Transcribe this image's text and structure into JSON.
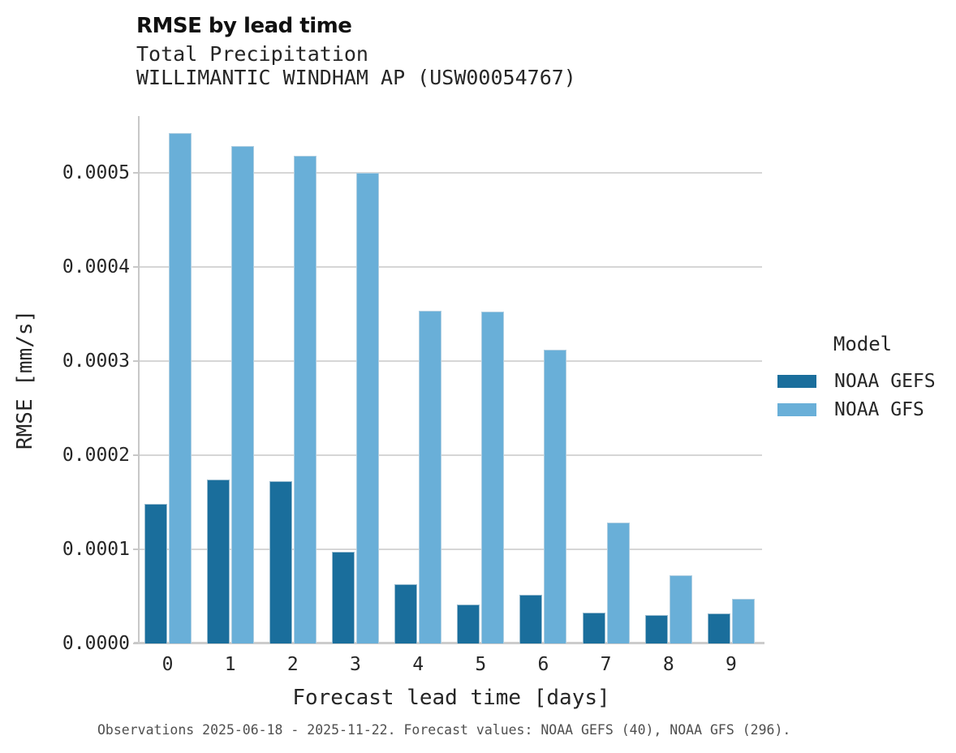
{
  "header": {
    "title": "RMSE by lead time",
    "subtitle_variable": "Total Precipitation",
    "subtitle_station": "WILLIMANTIC WINDHAM AP (USW00054767)"
  },
  "chart_data": {
    "type": "bar",
    "title": "RMSE by lead time",
    "subtitle": "Total Precipitation — WILLIMANTIC WINDHAM AP (USW00054767)",
    "categories": [
      "0",
      "1",
      "2",
      "3",
      "4",
      "5",
      "6",
      "7",
      "8",
      "9"
    ],
    "series": [
      {
        "name": "NOAA GEFS",
        "color": "#1a6e9c",
        "values": [
          0.000148,
          0.000174,
          0.000172,
          9.7e-05,
          6.3e-05,
          4.1e-05,
          5.2e-05,
          3.3e-05,
          3e-05,
          3.2e-05
        ]
      },
      {
        "name": "NOAA GFS",
        "color": "#69afd8",
        "values": [
          0.000542,
          0.000528,
          0.000518,
          0.0005,
          0.000353,
          0.000352,
          0.000312,
          0.000128,
          7.2e-05,
          4.7e-05
        ]
      }
    ],
    "xlabel": "Forecast lead time [days]",
    "ylabel": "RMSE [mm/s]",
    "ylim": [
      0,
      0.00056
    ],
    "yticks": [
      0,
      0.0001,
      0.0002,
      0.0003,
      0.0004,
      0.0005
    ],
    "ytick_labels": [
      "0.0000",
      "0.0001",
      "0.0002",
      "0.0003",
      "0.0004",
      "0.0005"
    ],
    "grid": true,
    "legend_title": "Model",
    "legend_position": "right of plot, middle"
  },
  "legend": {
    "title": "Model",
    "entries": [
      {
        "label": "NOAA GEFS",
        "color": "#1a6e9c"
      },
      {
        "label": "NOAA GFS",
        "color": "#69afd8"
      }
    ]
  },
  "footer": {
    "caption": "Observations 2025-06-18 - 2025-11-22. Forecast values: NOAA GEFS (40), NOAA GFS (296)."
  },
  "colors": {
    "gefs_bar": "#1a6e9c",
    "gfs_bar": "#69afd8",
    "gridline": "#d6d6d6",
    "axis_spine": "#c8c8c8",
    "text_primary": "#262626",
    "title_text": "#111111",
    "footer_text": "#4f4f4f",
    "background": "#ffffff"
  }
}
